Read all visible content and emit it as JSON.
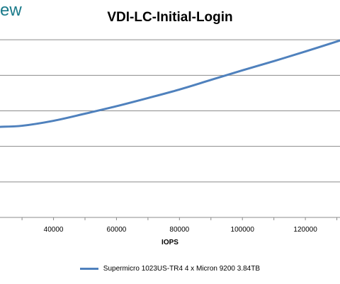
{
  "brand": {
    "text": "ew"
  },
  "chart_data": {
    "type": "line",
    "title": "VDI-LC-Initial-Login",
    "xlabel": "IOPS",
    "ylabel": "",
    "x_ticks": [
      40000,
      60000,
      80000,
      100000,
      120000
    ],
    "xlim": [
      23000,
      131000
    ],
    "ylim": [
      0,
      6
    ],
    "grid": true,
    "legend_position": "bottom",
    "series": [
      {
        "name": "Supermicro 1023US-TR4 4 x Micron 9200 3.84TB",
        "color": "#4f81bd",
        "x": [
          23000,
          30000,
          40000,
          50000,
          60000,
          70000,
          80000,
          90000,
          100000,
          110000,
          120000,
          131000
        ],
        "y": [
          2.55,
          2.58,
          2.72,
          2.92,
          3.13,
          3.36,
          3.6,
          3.87,
          4.14,
          4.4,
          4.67,
          4.98
        ]
      }
    ]
  }
}
